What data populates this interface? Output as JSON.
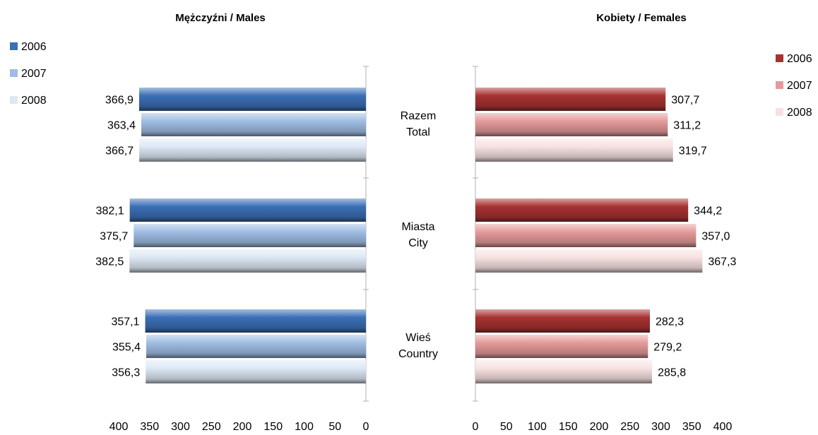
{
  "chart_data": [
    {
      "type": "bar",
      "orientation": "horizontal-reversed",
      "title": "Mężczyźni / Males",
      "categories": [
        "Razem\nTotal",
        "Miasta\nCity",
        "Wieś\nCountry"
      ],
      "series": [
        {
          "name": "2006",
          "values": [
            366.9,
            382.1,
            357.1
          ],
          "color": "#3b6fb6"
        },
        {
          "name": "2007",
          "values": [
            363.4,
            375.7,
            355.4
          ],
          "color": "#9fbde3"
        },
        {
          "name": "2008",
          "values": [
            366.7,
            382.5,
            356.3
          ],
          "color": "#dde8f5"
        }
      ],
      "value_labels": [
        [
          "366,9",
          "382,1",
          "357,1"
        ],
        [
          "363,4",
          "375,7",
          "355,4"
        ],
        [
          "366,7",
          "382,5",
          "356,3"
        ]
      ],
      "xlim": [
        0,
        400
      ],
      "xticks": [
        "400",
        "350",
        "300",
        "250",
        "200",
        "150",
        "100",
        "50",
        "0"
      ],
      "legend_position": "top-left"
    },
    {
      "type": "bar",
      "orientation": "horizontal",
      "title": "Kobiety / Females",
      "categories": [
        "Razem\nTotal",
        "Miasta\nCity",
        "Wieś\nCountry"
      ],
      "series": [
        {
          "name": "2006",
          "values": [
            307.7,
            344.2,
            282.3
          ],
          "color": "#a83232"
        },
        {
          "name": "2007",
          "values": [
            311.2,
            357.0,
            279.2
          ],
          "color": "#e59a9a"
        },
        {
          "name": "2008",
          "values": [
            319.7,
            367.3,
            285.8
          ],
          "color": "#f8e1e1"
        }
      ],
      "value_labels": [
        [
          "307,7",
          "344,2",
          "282,3"
        ],
        [
          "311,2",
          "357,0",
          "279,2"
        ],
        [
          "319,7",
          "367,3",
          "285,8"
        ]
      ],
      "xlim": [
        0,
        400
      ],
      "xticks": [
        "0",
        "50",
        "100",
        "150",
        "200",
        "250",
        "300",
        "350",
        "400"
      ],
      "legend_position": "top-right"
    }
  ]
}
